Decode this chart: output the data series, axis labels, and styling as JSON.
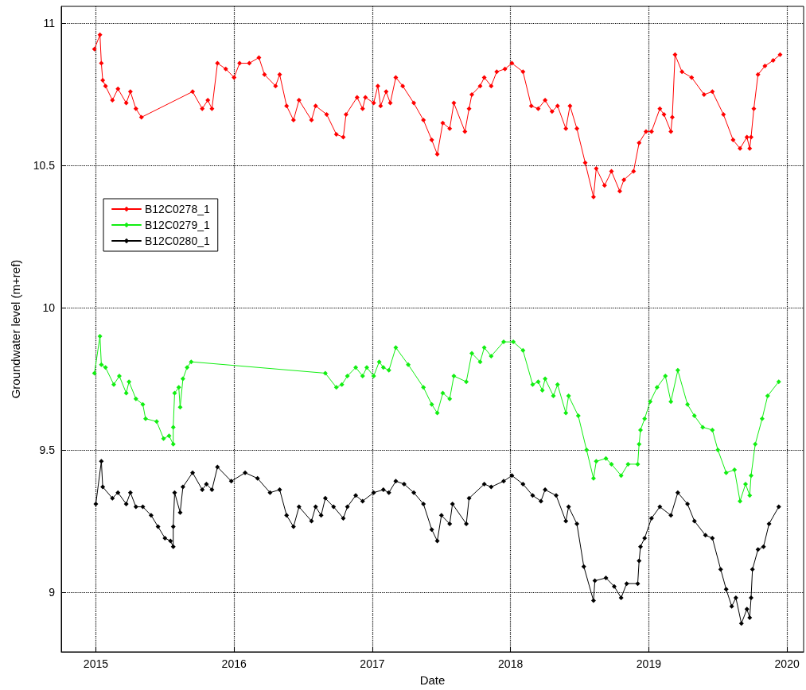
{
  "chart_data": {
    "type": "line",
    "xlabel": "Date",
    "ylabel": "Groundwater level (m+ref)",
    "xlim": [
      2014.75,
      2020.12
    ],
    "ylim": [
      8.79,
      11.06
    ],
    "xticks": [
      2015,
      2016,
      2017,
      2018,
      2019,
      2020
    ],
    "yticks": [
      9,
      9.5,
      10,
      10.5,
      11
    ],
    "grid": true,
    "legend": "left",
    "marker": "diamond",
    "line_style": "solid",
    "series": [
      {
        "name": "B12C0278_1",
        "color": "#ff0000",
        "x": [
          2014.99,
          2015.03,
          2015.04,
          2015.05,
          2015.07,
          2015.12,
          2015.16,
          2015.22,
          2015.25,
          2015.29,
          2015.33,
          2015.7,
          2015.77,
          2015.81,
          2015.84,
          2015.88,
          2015.94,
          2016.0,
          2016.04,
          2016.11,
          2016.18,
          2016.22,
          2016.3,
          2016.33,
          2016.38,
          2016.43,
          2016.47,
          2016.56,
          2016.59,
          2016.67,
          2016.74,
          2016.79,
          2016.81,
          2016.89,
          2016.93,
          2016.95,
          2017.01,
          2017.04,
          2017.06,
          2017.1,
          2017.13,
          2017.17,
          2017.22,
          2017.3,
          2017.37,
          2017.43,
          2017.47,
          2017.51,
          2017.56,
          2017.59,
          2017.67,
          2017.7,
          2017.72,
          2017.78,
          2017.81,
          2017.86,
          2017.9,
          2017.96,
          2018.01,
          2018.09,
          2018.15,
          2018.2,
          2018.25,
          2018.3,
          2018.34,
          2018.4,
          2018.43,
          2018.48,
          2018.54,
          2018.6,
          2018.62,
          2018.68,
          2018.73,
          2018.79,
          2018.82,
          2018.89,
          2018.93,
          2018.98,
          2019.02,
          2019.08,
          2019.11,
          2019.16,
          2019.17,
          2019.19,
          2019.24,
          2019.31,
          2019.4,
          2019.46,
          2019.54,
          2019.61,
          2019.66,
          2019.71,
          2019.73,
          2019.74,
          2019.76,
          2019.79,
          2019.84,
          2019.9,
          2019.95
        ],
        "values": [
          10.91,
          10.96,
          10.86,
          10.8,
          10.78,
          10.73,
          10.77,
          10.72,
          10.76,
          10.7,
          10.67,
          10.76,
          10.7,
          10.73,
          10.7,
          10.86,
          10.84,
          10.81,
          10.86,
          10.86,
          10.88,
          10.82,
          10.78,
          10.82,
          10.71,
          10.66,
          10.73,
          10.66,
          10.71,
          10.68,
          10.61,
          10.6,
          10.68,
          10.74,
          10.7,
          10.74,
          10.72,
          10.78,
          10.71,
          10.76,
          10.72,
          10.81,
          10.78,
          10.72,
          10.66,
          10.59,
          10.54,
          10.65,
          10.63,
          10.72,
          10.62,
          10.7,
          10.75,
          10.78,
          10.81,
          10.78,
          10.83,
          10.84,
          10.86,
          10.83,
          10.71,
          10.7,
          10.73,
          10.69,
          10.71,
          10.63,
          10.71,
          10.63,
          10.51,
          10.39,
          10.49,
          10.43,
          10.48,
          10.41,
          10.45,
          10.48,
          10.58,
          10.62,
          10.62,
          10.7,
          10.68,
          10.62,
          10.67,
          10.89,
          10.83,
          10.81,
          10.75,
          10.76,
          10.68,
          10.59,
          10.56,
          10.6,
          10.56,
          10.6,
          10.7,
          10.82,
          10.85,
          10.87,
          10.89
        ]
      },
      {
        "name": "B12C0279_1",
        "color": "#11ee11",
        "x": [
          2014.99,
          2015.03,
          2015.04,
          2015.07,
          2015.13,
          2015.17,
          2015.22,
          2015.24,
          2015.29,
          2015.34,
          2015.36,
          2015.44,
          2015.49,
          2015.53,
          2015.56,
          2015.56,
          2015.57,
          2015.6,
          2015.61,
          2015.63,
          2015.66,
          2015.69,
          2016.66,
          2016.74,
          2016.78,
          2016.82,
          2016.88,
          2016.93,
          2016.96,
          2017.01,
          2017.05,
          2017.08,
          2017.12,
          2017.17,
          2017.26,
          2017.37,
          2017.43,
          2017.47,
          2017.51,
          2017.56,
          2017.59,
          2017.68,
          2017.72,
          2017.78,
          2017.81,
          2017.86,
          2017.95,
          2018.02,
          2018.09,
          2018.16,
          2018.2,
          2018.23,
          2018.25,
          2018.31,
          2018.34,
          2018.4,
          2018.42,
          2018.49,
          2018.55,
          2018.6,
          2018.62,
          2018.69,
          2018.73,
          2018.8,
          2018.85,
          2018.92,
          2018.93,
          2018.94,
          2018.97,
          2019.01,
          2019.06,
          2019.12,
          2019.16,
          2019.21,
          2019.28,
          2019.33,
          2019.39,
          2019.46,
          2019.5,
          2019.56,
          2019.62,
          2019.66,
          2019.7,
          2019.73,
          2019.74,
          2019.77,
          2019.82,
          2019.86,
          2019.94
        ],
        "values": [
          9.77,
          9.9,
          9.8,
          9.79,
          9.73,
          9.76,
          9.7,
          9.74,
          9.68,
          9.66,
          9.61,
          9.6,
          9.54,
          9.55,
          9.52,
          9.58,
          9.7,
          9.72,
          9.65,
          9.75,
          9.79,
          9.81,
          9.77,
          9.72,
          9.73,
          9.76,
          9.79,
          9.76,
          9.79,
          9.76,
          9.81,
          9.79,
          9.78,
          9.86,
          9.8,
          9.72,
          9.66,
          9.63,
          9.7,
          9.68,
          9.76,
          9.74,
          9.84,
          9.81,
          9.86,
          9.83,
          9.88,
          9.88,
          9.85,
          9.73,
          9.74,
          9.71,
          9.75,
          9.69,
          9.73,
          9.63,
          9.69,
          9.62,
          9.5,
          9.4,
          9.46,
          9.47,
          9.45,
          9.41,
          9.45,
          9.45,
          9.52,
          9.57,
          9.61,
          9.67,
          9.72,
          9.76,
          9.67,
          9.78,
          9.66,
          9.62,
          9.58,
          9.57,
          9.5,
          9.42,
          9.43,
          9.32,
          9.38,
          9.34,
          9.41,
          9.52,
          9.61,
          9.69,
          9.74
        ]
      },
      {
        "name": "B12C0280_1",
        "color": "#000000",
        "x": [
          2015.0,
          2015.04,
          2015.05,
          2015.12,
          2015.16,
          2015.22,
          2015.25,
          2015.29,
          2015.34,
          2015.4,
          2015.45,
          2015.5,
          2015.54,
          2015.56,
          2015.56,
          2015.57,
          2015.61,
          2015.63,
          2015.7,
          2015.77,
          2015.8,
          2015.84,
          2015.88,
          2015.98,
          2016.08,
          2016.17,
          2016.26,
          2016.33,
          2016.38,
          2016.43,
          2016.47,
          2016.56,
          2016.59,
          2016.63,
          2016.66,
          2016.72,
          2016.79,
          2016.82,
          2016.88,
          2016.93,
          2017.01,
          2017.08,
          2017.12,
          2017.17,
          2017.23,
          2017.3,
          2017.37,
          2017.43,
          2017.47,
          2017.5,
          2017.56,
          2017.58,
          2017.68,
          2017.7,
          2017.81,
          2017.86,
          2017.95,
          2018.01,
          2018.09,
          2018.16,
          2018.22,
          2018.25,
          2018.33,
          2018.4,
          2018.42,
          2018.48,
          2018.53,
          2018.6,
          2018.61,
          2018.69,
          2018.75,
          2018.8,
          2018.84,
          2018.92,
          2018.93,
          2018.94,
          2018.97,
          2019.02,
          2019.08,
          2019.16,
          2019.21,
          2019.28,
          2019.33,
          2019.41,
          2019.46,
          2019.52,
          2019.56,
          2019.6,
          2019.63,
          2019.67,
          2019.71,
          2019.73,
          2019.74,
          2019.75,
          2019.79,
          2019.83,
          2019.87,
          2019.94
        ],
        "values": [
          9.31,
          9.46,
          9.37,
          9.33,
          9.35,
          9.31,
          9.35,
          9.3,
          9.3,
          9.27,
          9.23,
          9.19,
          9.18,
          9.16,
          9.23,
          9.35,
          9.28,
          9.37,
          9.42,
          9.36,
          9.38,
          9.36,
          9.44,
          9.39,
          9.42,
          9.4,
          9.35,
          9.36,
          9.27,
          9.23,
          9.3,
          9.25,
          9.3,
          9.27,
          9.33,
          9.3,
          9.26,
          9.3,
          9.34,
          9.32,
          9.35,
          9.36,
          9.35,
          9.39,
          9.38,
          9.35,
          9.31,
          9.22,
          9.18,
          9.27,
          9.24,
          9.31,
          9.24,
          9.33,
          9.38,
          9.37,
          9.39,
          9.41,
          9.38,
          9.34,
          9.32,
          9.36,
          9.34,
          9.25,
          9.3,
          9.24,
          9.09,
          8.97,
          9.04,
          9.05,
          9.02,
          8.98,
          9.03,
          9.03,
          9.11,
          9.16,
          9.19,
          9.26,
          9.3,
          9.27,
          9.35,
          9.31,
          9.25,
          9.2,
          9.19,
          9.08,
          9.01,
          8.95,
          8.98,
          8.89,
          8.94,
          8.91,
          8.98,
          9.08,
          9.15,
          9.16,
          9.24,
          9.3
        ]
      }
    ]
  }
}
